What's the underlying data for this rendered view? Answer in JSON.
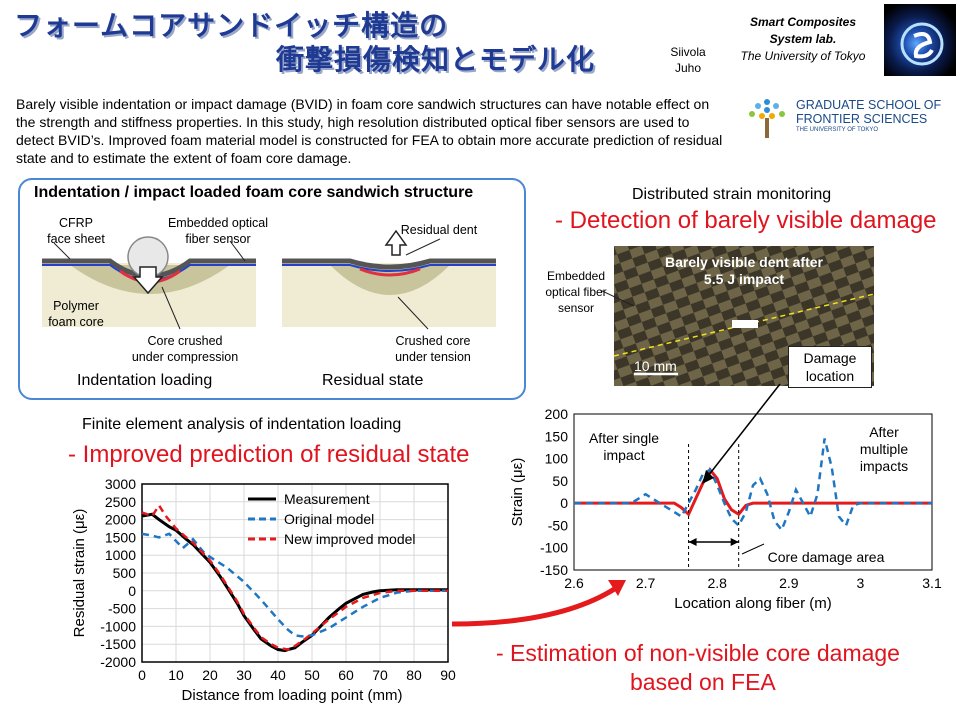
{
  "title": {
    "line1": "フォームコアサンドイッチ構造の",
    "line2": "衝撃損傷検知とモデル化"
  },
  "authors": {
    "line1": "Siivola",
    "line2": "Juho"
  },
  "lab": {
    "line1": "Smart Composites",
    "line2": "System lab.",
    "line3": "The University of Tokyo"
  },
  "school": {
    "line1": "GRADUATE SCHOOL OF",
    "line2": "FRONTIER SCIENCES",
    "line3": "THE UNIVERSITY OF TOKYO"
  },
  "abstract": "Barely visible indentation or impact damage (BVID) in foam core sandwich structures can have notable effect on the strength and stiffness properties. In this study, high resolution distributed optical fiber sensors are used to detect BVID’s. Improved foam material model is constructed for FEA to obtain more accurate prediction of residual state and to estimate the extent of foam core damage.",
  "schematic": {
    "title": "Indentation / impact loaded foam core sandwich structure",
    "cfrp": "CFRP\nface sheet",
    "fiber": "Embedded optical\nfiber sensor",
    "foam": "Polymer\nfoam core",
    "crushed_comp": "Core crushed\nunder compression",
    "residual_dent": "Residual dent",
    "crushed_tens": "Crushed core\nunder tension",
    "cap_left": "Indentation loading",
    "cap_right": "Residual state"
  },
  "monitoring": {
    "title": "Distributed strain monitoring",
    "subtitle": "- Detection of barely visible damage",
    "photo_label": "Barely visible dent after\n5.5 J impact",
    "fiber_label": "Embedded\noptical fiber\nsensor",
    "scale": "10 mm",
    "damage": "Damage\nlocation"
  },
  "fea": {
    "title": "Finite element analysis of indentation loading",
    "subtitle": "- Improved prediction of residual state"
  },
  "estimation": {
    "line1": "- Estimation of non-visible core damage",
    "line2": "based on FEA"
  },
  "chart_data": [
    {
      "type": "line",
      "xlabel": "Distance from loading point (mm)",
      "ylabel": "Residual strain (με)",
      "xlim": [
        0,
        90
      ],
      "ylim": [
        -2000,
        3000
      ],
      "xticks": [
        0,
        10,
        20,
        30,
        40,
        50,
        60,
        70,
        80,
        90
      ],
      "yticks": [
        3000,
        2500,
        2000,
        1500,
        1000,
        500,
        0,
        -500,
        -1000,
        -1500,
        -2000
      ],
      "legend": "top-right",
      "series": [
        {
          "name": "Measurement",
          "color": "#000000",
          "dash": "solid",
          "x": [
            0,
            3,
            5,
            8,
            10,
            13,
            15,
            18,
            20,
            23,
            25,
            28,
            30,
            33,
            35,
            38,
            40,
            42,
            43,
            45,
            47,
            50,
            53,
            55,
            58,
            60,
            63,
            65,
            68,
            70,
            73,
            75,
            80,
            85,
            90
          ],
          "y": [
            2100,
            2150,
            2000,
            1800,
            1700,
            1450,
            1300,
            1000,
            800,
            400,
            100,
            -350,
            -700,
            -1100,
            -1350,
            -1550,
            -1650,
            -1680,
            -1650,
            -1600,
            -1450,
            -1250,
            -950,
            -750,
            -500,
            -350,
            -200,
            -100,
            -30,
            0,
            20,
            30,
            30,
            30,
            30
          ]
        },
        {
          "name": "Original model",
          "color": "#1f77c4",
          "dash": "dashed",
          "x": [
            0,
            3,
            5,
            8,
            10,
            12,
            15,
            18,
            20,
            25,
            30,
            35,
            40,
            43,
            45,
            47,
            50,
            55,
            60,
            65,
            70,
            75,
            80,
            85,
            90
          ],
          "y": [
            1600,
            1550,
            1500,
            1600,
            1400,
            1200,
            1450,
            1100,
            950,
            650,
            250,
            -250,
            -800,
            -1100,
            -1250,
            -1280,
            -1250,
            -1050,
            -750,
            -450,
            -200,
            -50,
            0,
            0,
            0
          ]
        },
        {
          "name": "New improved model",
          "color": "#e41a1c",
          "dash": "dashed",
          "x": [
            0,
            3,
            5,
            7,
            10,
            13,
            15,
            18,
            20,
            23,
            25,
            28,
            30,
            33,
            35,
            38,
            40,
            43,
            45,
            48,
            50,
            55,
            60,
            65,
            70,
            75,
            80,
            90
          ],
          "y": [
            2200,
            2100,
            2400,
            2100,
            1750,
            1500,
            1350,
            1050,
            850,
            450,
            150,
            -300,
            -650,
            -1050,
            -1300,
            -1500,
            -1600,
            -1650,
            -1550,
            -1350,
            -1200,
            -800,
            -450,
            -200,
            -60,
            0,
            0,
            0
          ]
        }
      ]
    },
    {
      "type": "line",
      "xlabel": "Location along fiber (m)",
      "ylabel": "Strain (με)",
      "xlim": [
        2.6,
        3.1
      ],
      "ylim": [
        -150,
        200
      ],
      "xticks": [
        2.6,
        2.7,
        2.8,
        2.9,
        3,
        3.1
      ],
      "yticks": [
        200,
        150,
        100,
        50,
        0,
        -50,
        -100,
        -150
      ],
      "annotations": {
        "single": "After single\nimpact",
        "multiple": "After\nmultiple\nimpacts",
        "core_area": "Core damage area"
      },
      "core_area_range": [
        2.76,
        2.83
      ],
      "series": [
        {
          "label": "After single impact",
          "color": "#e41a1c",
          "dash": "solid",
          "x": [
            2.6,
            2.65,
            2.7,
            2.74,
            2.75,
            2.76,
            2.77,
            2.78,
            2.79,
            2.8,
            2.81,
            2.82,
            2.83,
            2.84,
            2.85,
            2.9,
            3.0,
            3.1
          ],
          "y": [
            0,
            0,
            0,
            0,
            -10,
            -25,
            10,
            45,
            75,
            55,
            10,
            -15,
            -25,
            -5,
            0,
            0,
            0,
            0
          ]
        },
        {
          "label": "After multiple impacts",
          "color": "#1f77c4",
          "dash": "dashed",
          "x": [
            2.6,
            2.68,
            2.7,
            2.72,
            2.74,
            2.75,
            2.76,
            2.77,
            2.78,
            2.79,
            2.8,
            2.81,
            2.82,
            2.83,
            2.84,
            2.85,
            2.86,
            2.87,
            2.88,
            2.89,
            2.9,
            2.91,
            2.92,
            2.93,
            2.94,
            2.95,
            2.96,
            2.97,
            2.98,
            2.99,
            3.0,
            3.1
          ],
          "y": [
            0,
            0,
            20,
            0,
            -20,
            -30,
            0,
            30,
            65,
            75,
            40,
            0,
            -35,
            -50,
            -20,
            40,
            55,
            20,
            -40,
            -60,
            -20,
            30,
            0,
            -30,
            20,
            145,
            80,
            -30,
            -50,
            -5,
            0,
            0
          ]
        }
      ]
    }
  ]
}
